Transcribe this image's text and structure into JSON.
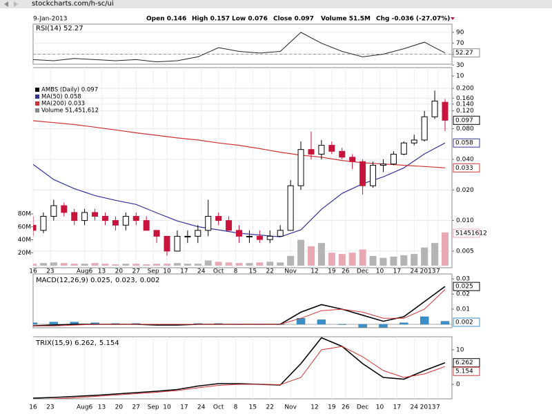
{
  "browser": {
    "url": "stockcharts.com/h-sc/ui"
  },
  "header": {
    "date": "9-Jan-2013",
    "quote": [
      "Open 0.146",
      "High 0.157",
      "Low 0.076",
      "Close 0.097",
      "Volume 51.5M",
      "Chg -0.036 (-27.07%)"
    ]
  },
  "chart_data": [
    {
      "type": "line",
      "title": "RSI(14) 52.27",
      "x": [
        0,
        6,
        12,
        18,
        24,
        30,
        36,
        42,
        48,
        54,
        60,
        66,
        72,
        78,
        84,
        90,
        96,
        102,
        108,
        114,
        120
      ],
      "xlim": [
        0,
        120
      ],
      "ylim": [
        0,
        100
      ],
      "yticks": [
        10,
        30,
        50,
        70,
        90
      ],
      "series": [
        {
          "name": "RSI(14)",
          "color": "#222222",
          "values": [
            40,
            38,
            42,
            40,
            38,
            40,
            36,
            38,
            45,
            62,
            55,
            52,
            55,
            90,
            70,
            55,
            45,
            50,
            60,
            72,
            52.27
          ]
        }
      ]
    },
    {
      "type": "candlestick",
      "log_scale": true,
      "grid": true,
      "legend": [
        {
          "label": "AMBS (Daily) 0.097",
          "color": "#000000"
        },
        {
          "label": "MA(50) 0.058",
          "color": "#333399"
        },
        {
          "label": "MA(200) 0.033",
          "color": "#d03030"
        },
        {
          "label": "Volume 51,451,612",
          "color": "#888888"
        }
      ],
      "x": [
        0,
        3,
        6,
        9,
        12,
        15,
        18,
        21,
        24,
        27,
        30,
        33,
        36,
        39,
        42,
        45,
        48,
        51,
        54,
        57,
        60,
        63,
        66,
        69,
        72,
        75,
        78,
        81,
        84,
        87,
        90,
        93,
        96,
        99,
        102,
        105,
        108,
        111,
        114,
        117,
        120
      ],
      "open": [
        0.009,
        0.008,
        0.011,
        0.014,
        0.012,
        0.01,
        0.012,
        0.011,
        0.01,
        0.009,
        0.011,
        0.01,
        0.008,
        0.007,
        0.005,
        0.007,
        0.007,
        0.008,
        0.011,
        0.01,
        0.008,
        0.007,
        0.007,
        0.0065,
        0.007,
        0.008,
        0.022,
        0.05,
        0.045,
        0.055,
        0.048,
        0.042,
        0.038,
        0.022,
        0.035,
        0.036,
        0.045,
        0.058,
        0.062,
        0.105,
        0.146
      ],
      "high": [
        0.011,
        0.012,
        0.016,
        0.015,
        0.013,
        0.013,
        0.013,
        0.012,
        0.011,
        0.012,
        0.012,
        0.011,
        0.008,
        0.007,
        0.008,
        0.008,
        0.009,
        0.016,
        0.012,
        0.011,
        0.009,
        0.008,
        0.008,
        0.008,
        0.009,
        0.025,
        0.06,
        0.075,
        0.062,
        0.06,
        0.052,
        0.045,
        0.04,
        0.038,
        0.04,
        0.048,
        0.06,
        0.07,
        0.12,
        0.19,
        0.157
      ],
      "low": [
        0.007,
        0.0075,
        0.01,
        0.011,
        0.009,
        0.009,
        0.01,
        0.009,
        0.008,
        0.008,
        0.009,
        0.008,
        0.006,
        0.0045,
        0.005,
        0.006,
        0.006,
        0.007,
        0.009,
        0.008,
        0.006,
        0.006,
        0.006,
        0.006,
        0.007,
        0.008,
        0.02,
        0.04,
        0.04,
        0.045,
        0.04,
        0.032,
        0.018,
        0.021,
        0.03,
        0.035,
        0.044,
        0.055,
        0.06,
        0.1,
        0.076
      ],
      "close": [
        0.008,
        0.011,
        0.014,
        0.012,
        0.01,
        0.012,
        0.011,
        0.01,
        0.009,
        0.011,
        0.01,
        0.008,
        0.007,
        0.005,
        0.007,
        0.007,
        0.008,
        0.011,
        0.01,
        0.008,
        0.007,
        0.007,
        0.0065,
        0.007,
        0.008,
        0.022,
        0.05,
        0.045,
        0.055,
        0.048,
        0.042,
        0.038,
        0.022,
        0.035,
        0.036,
        0.045,
        0.058,
        0.062,
        0.105,
        0.15,
        0.097
      ],
      "up_color": "#ffffff",
      "down_color": "#c8143c",
      "series": [
        {
          "name": "MA(50)",
          "color": "#333399",
          "x": [
            0,
            6,
            12,
            18,
            24,
            30,
            36,
            42,
            48,
            54,
            60,
            66,
            72,
            78,
            84,
            90,
            96,
            102,
            108,
            114,
            120
          ],
          "values": [
            0.0357,
            0.0253,
            0.0206,
            0.0176,
            0.0158,
            0.0144,
            0.0119,
            0.0099,
            0.0087,
            0.0081,
            0.0075,
            0.0072,
            0.0069,
            0.0081,
            0.0129,
            0.0185,
            0.023,
            0.0269,
            0.033,
            0.0452,
            0.058
          ]
        },
        {
          "name": "MA(200)",
          "color": "#d03030",
          "x": [
            0,
            6,
            12,
            18,
            24,
            30,
            36,
            42,
            48,
            54,
            60,
            66,
            72,
            78,
            84,
            90,
            96,
            102,
            108,
            114,
            120
          ],
          "values": [
            0.096,
            0.092,
            0.088,
            0.083,
            0.078,
            0.073,
            0.069,
            0.065,
            0.062,
            0.058,
            0.055,
            0.051,
            0.047,
            0.044,
            0.042,
            0.039,
            0.037,
            0.036,
            0.035,
            0.034,
            0.033
          ]
        }
      ],
      "ylim": [
        0.00343,
        0.32
      ],
      "yticks": [
        {
          "value": 0.2,
          "label": "0.200"
        },
        {
          "value": 0.16,
          "label": "0.160"
        },
        {
          "value": 0.14,
          "label": "0.140"
        },
        {
          "value": 0.12,
          "label": "0.120"
        },
        {
          "value": 0.08,
          "label": "0.080"
        },
        {
          "value": 0.04,
          "label": "0.040"
        },
        {
          "value": 0.02,
          "label": "0.020"
        },
        {
          "value": 0.01,
          "label": "0.010"
        },
        0.005
      ],
      "volume": {
        "up_color": "#b4b4b4",
        "down_color": "#e8a8b4",
        "values": [
          3000000,
          4000000,
          5000000,
          4000000,
          3000000,
          3000000,
          4000000,
          3000000,
          2000000,
          3000000,
          3000000,
          2000000,
          3000000,
          3000000,
          4000000,
          3000000,
          3000000,
          8000000,
          6000000,
          5000000,
          4000000,
          4000000,
          5000000,
          6000000,
          5000000,
          15000000,
          40000000,
          30000000,
          35000000,
          20000000,
          18000000,
          20000000,
          25000000,
          15000000,
          12000000,
          14000000,
          16000000,
          18000000,
          28000000,
          35000000,
          51451612
        ],
        "ylim": [
          0,
          160000000
        ],
        "yticks": [
          {
            "value": 20000000,
            "label": "20M"
          },
          {
            "value": 40000000,
            "label": "40M"
          },
          {
            "value": 60000000,
            "label": "60M"
          },
          {
            "value": 80000000,
            "label": "80M"
          }
        ]
      },
      "xlim": [
        0,
        120
      ],
      "xticks": [
        {
          "value": 0,
          "label": "16"
        },
        {
          "value": 5,
          "label": "23"
        },
        {
          "value": 15,
          "label": "Aug6"
        },
        {
          "value": 20,
          "label": "13"
        },
        {
          "value": 25,
          "label": "20"
        },
        {
          "value": 30,
          "label": "27"
        },
        {
          "value": 35,
          "label": "Sep"
        },
        {
          "value": 39,
          "label": "10"
        },
        {
          "value": 44,
          "label": "17"
        },
        {
          "value": 49,
          "label": "24"
        },
        {
          "value": 54,
          "label": "Oct"
        },
        {
          "value": 59,
          "label": "8"
        },
        {
          "value": 64,
          "label": "15"
        },
        {
          "value": 69,
          "label": "22"
        },
        {
          "value": 75,
          "label": "Nov"
        },
        {
          "value": 82,
          "label": "12"
        },
        {
          "value": 87,
          "label": "19"
        },
        {
          "value": 91,
          "label": "26"
        },
        {
          "value": 96,
          "label": "Dec"
        },
        {
          "value": 101,
          "label": "10"
        },
        {
          "value": 106,
          "label": "17"
        },
        {
          "value": 111,
          "label": "24"
        },
        {
          "value": 115,
          "label": "2013"
        },
        {
          "value": 118,
          "label": "7"
        }
      ]
    },
    {
      "type": "macd",
      "title_parts": [
        {
          "text": "MACD(12,26,9) 0.025,",
          "color": "#000000"
        },
        {
          "text": "0.023,",
          "color": "#d03030"
        },
        {
          "text": "0.002",
          "color": "#3a8fc8"
        }
      ],
      "x": [
        0,
        6,
        12,
        18,
        24,
        30,
        36,
        42,
        48,
        54,
        60,
        66,
        72,
        78,
        84,
        90,
        96,
        102,
        108,
        114,
        120
      ],
      "xlim": [
        0,
        120
      ],
      "ylim": [
        -0.0023,
        0.0333
      ],
      "yticks": [
        0.01,
        0.02,
        0.03
      ],
      "series": [
        {
          "name": "MACD",
          "color": "#000000",
          "values": [
            -0.001,
            -0.0005,
            0,
            0,
            0,
            0,
            -0.0005,
            -0.0005,
            0,
            0,
            0,
            0,
            0,
            0.008,
            0.013,
            0.01,
            0.006,
            0.002,
            0.005,
            0.015,
            0.025
          ]
        },
        {
          "name": "Signal",
          "color": "#d03030",
          "values": [
            -0.001,
            -0.001,
            -0.0005,
            0,
            0,
            0,
            0,
            0,
            0,
            0,
            0,
            0,
            0,
            0.004,
            0.009,
            0.01,
            0.008,
            0.004,
            0.004,
            0.01,
            0.023
          ]
        }
      ],
      "histogram": {
        "color": "#3a8fc8",
        "values": [
          0.001,
          0.0015,
          0.0015,
          0.001,
          0.0005,
          0.0005,
          0,
          0,
          0.0005,
          0.0005,
          0,
          0,
          0,
          0.004,
          0.003,
          0,
          -0.002,
          -0.002,
          0.001,
          0.005,
          0.002
        ]
      }
    },
    {
      "type": "line",
      "title_parts": [
        {
          "text": "TRIX(15,9) 6.262,",
          "color": "#000000"
        },
        {
          "text": "5.154",
          "color": "#d03030"
        }
      ],
      "x": [
        0,
        6,
        12,
        18,
        24,
        30,
        36,
        42,
        48,
        54,
        60,
        66,
        72,
        78,
        84,
        90,
        96,
        102,
        108,
        114,
        120
      ],
      "xlim": [
        0,
        120
      ],
      "ylim": [
        -4.2,
        13.8
      ],
      "yticks": [
        0,
        5,
        10
      ],
      "series": [
        {
          "name": "TRIX",
          "color": "#000000",
          "values": [
            -4,
            -3.8,
            -3.5,
            -3.2,
            -2.8,
            -2.4,
            -2,
            -1.5,
            -0.5,
            0.2,
            0.2,
            0,
            -0.2,
            6,
            13.5,
            11,
            6,
            2,
            1.5,
            4,
            6.262
          ]
        },
        {
          "name": "Signal",
          "color": "#d03030",
          "values": [
            -4.5,
            -4.2,
            -3.9,
            -3.5,
            -3.1,
            -2.7,
            -2.3,
            -1.8,
            -1,
            -0.3,
            0,
            0,
            -0.1,
            2,
            10,
            11,
            8,
            4,
            2,
            3,
            5.154
          ]
        }
      ],
      "xticks": [
        {
          "value": 0,
          "label": "16"
        },
        {
          "value": 5,
          "label": "23"
        },
        {
          "value": 15,
          "label": "Aug6"
        },
        {
          "value": 20,
          "label": "13"
        },
        {
          "value": 25,
          "label": "20"
        },
        {
          "value": 30,
          "label": "27"
        },
        {
          "value": 35,
          "label": "Sep"
        },
        {
          "value": 39,
          "label": "10"
        },
        {
          "value": 44,
          "label": "17"
        },
        {
          "value": 49,
          "label": "24"
        },
        {
          "value": 54,
          "label": "Oct"
        },
        {
          "value": 59,
          "label": "8"
        },
        {
          "value": 64,
          "label": "15"
        },
        {
          "value": 69,
          "label": "22"
        },
        {
          "value": 75,
          "label": "Nov"
        },
        {
          "value": 82,
          "label": "12"
        },
        {
          "value": 87,
          "label": "19"
        },
        {
          "value": 91,
          "label": "26"
        },
        {
          "value": 96,
          "label": "Dec"
        },
        {
          "value": 101,
          "label": "10"
        },
        {
          "value": 106,
          "label": "17"
        },
        {
          "value": 111,
          "label": "24"
        },
        {
          "value": 115,
          "label": "2013"
        },
        {
          "value": 118,
          "label": "7"
        }
      ]
    }
  ]
}
